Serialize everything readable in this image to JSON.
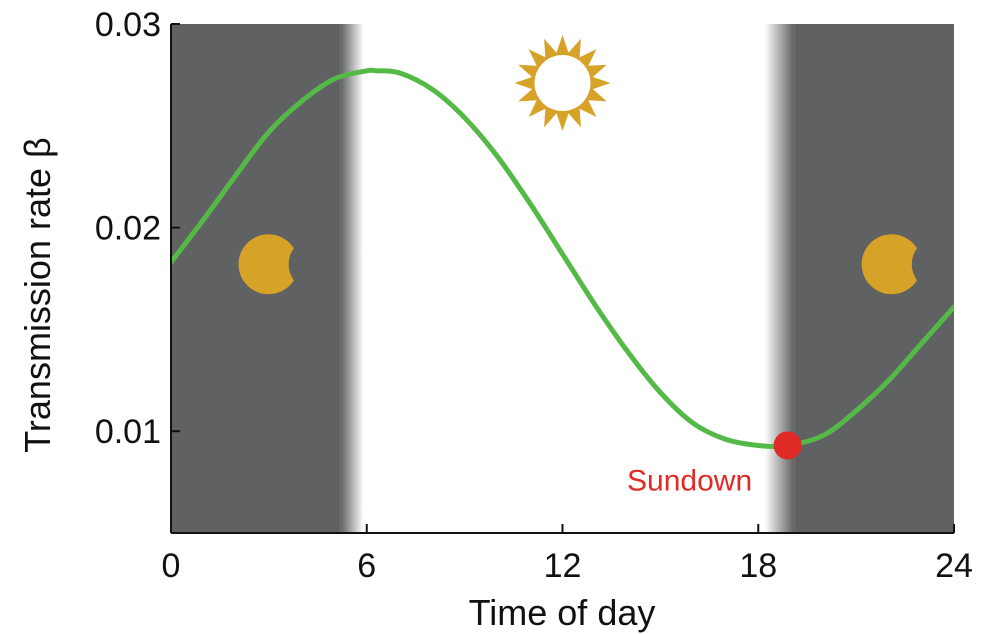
{
  "chart_data": {
    "type": "line",
    "xlabel": "Time of day",
    "ylabel": "Transmission rate β",
    "xlim": [
      0,
      24
    ],
    "ylim": [
      0.005,
      0.03
    ],
    "x_ticks": [
      0,
      6,
      12,
      18,
      24
    ],
    "x_tick_labels": [
      "0",
      "6",
      "12",
      "18",
      "24"
    ],
    "y_ticks": [
      0.01,
      0.02,
      0.03
    ],
    "y_tick_labels": [
      "0.01",
      "0.02",
      "0.03"
    ],
    "grid": false,
    "series": [
      {
        "color": "#55b947",
        "x": [
          0,
          1,
          2,
          3,
          4,
          5,
          6,
          6.3,
          7,
          8,
          9,
          10,
          11,
          12,
          13,
          14,
          15,
          16,
          17,
          18,
          18.9,
          20,
          21,
          22,
          23,
          24
        ],
        "y": [
          0.0183,
          0.0204,
          0.0226,
          0.0247,
          0.0262,
          0.0273,
          0.0277,
          0.0277,
          0.0276,
          0.0268,
          0.0254,
          0.0235,
          0.0212,
          0.0187,
          0.0162,
          0.0139,
          0.0119,
          0.0104,
          0.0096,
          0.0093,
          0.0093,
          0.0098,
          0.011,
          0.0125,
          0.0143,
          0.0161
        ]
      }
    ],
    "night_shading": [
      {
        "from": 0,
        "to": 5.2,
        "fade_to": 5.9
      },
      {
        "from": 19.1,
        "to": 24,
        "fade_from": 18.2
      }
    ],
    "markers": [
      {
        "name": "sundown",
        "x": 18.9,
        "y": 0.0093,
        "color": "#e02a26"
      }
    ],
    "annotations": [
      {
        "text": "Sundown",
        "color": "#e02a26"
      }
    ],
    "icons": [
      {
        "name": "moon-icon",
        "x": 3.0,
        "y": 0.0182,
        "color": "#d7a228"
      },
      {
        "name": "sun-icon",
        "x": 12.0,
        "y": 0.0271,
        "color": "#d7a228"
      },
      {
        "name": "moon-icon",
        "x": 22.1,
        "y": 0.0182,
        "color": "#d7a228"
      }
    ],
    "colors": {
      "night": "#606162",
      "line": "#55b947",
      "icon": "#d7a228",
      "marker": "#e02a26"
    }
  }
}
